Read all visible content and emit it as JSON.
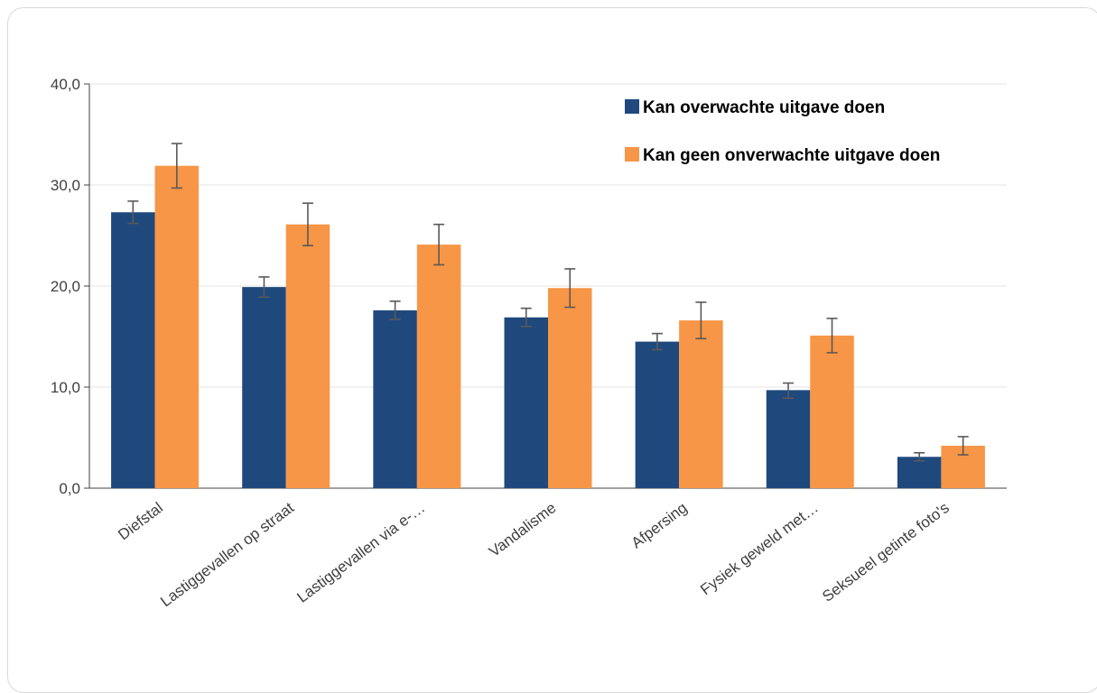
{
  "chart_data": {
    "type": "bar",
    "categories": [
      "Diefstal",
      "Lastiggevallen op straat",
      "Lastiggevallen via e-…",
      "Vandalisme",
      "Afpersing",
      "Fysiek geweld met…",
      "Seksueel getinte foto's"
    ],
    "series": [
      {
        "name": "Kan  overwachte uitgave doen",
        "color": "#1f497d",
        "values": [
          27.3,
          19.9,
          17.6,
          16.9,
          14.5,
          9.7,
          3.1
        ],
        "error_low": [
          26.2,
          18.9,
          16.7,
          16.0,
          13.7,
          8.9,
          2.7
        ],
        "error_high": [
          28.4,
          20.9,
          18.5,
          17.8,
          15.3,
          10.4,
          3.5
        ]
      },
      {
        "name": "Kan geen onverwachte uitgave doen",
        "color": "#f79646",
        "values": [
          31.9,
          26.1,
          24.1,
          19.8,
          16.6,
          15.1,
          4.2
        ],
        "error_low": [
          29.7,
          24.0,
          22.1,
          17.9,
          14.8,
          13.4,
          3.3
        ],
        "error_high": [
          34.1,
          28.2,
          26.1,
          21.7,
          18.4,
          16.8,
          5.1
        ]
      }
    ],
    "ylim": [
      0,
      40
    ],
    "yticks": [
      "0,0",
      "10,0",
      "20,0",
      "30,0",
      "40,0"
    ],
    "grid": true,
    "legend_position": "top-right"
  }
}
